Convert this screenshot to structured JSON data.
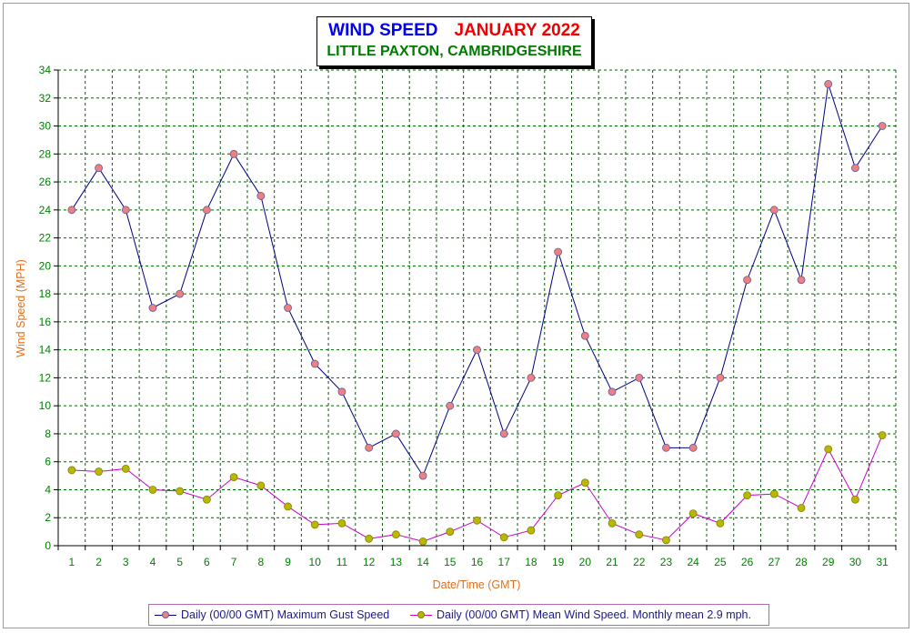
{
  "title": {
    "main": "WIND SPEED",
    "month": "JANUARY 2022",
    "location": "LITTLE PAXTON, CAMBRIDGESHIRE"
  },
  "colors": {
    "gust_line": "#000080",
    "gust_marker": "#f08080",
    "mean_line": "#cc00cc",
    "mean_marker": "#b8b800",
    "grid": "#006400",
    "tick_label": "#008000",
    "axis_title": "#e07020"
  },
  "legend": {
    "gust": "Daily (00/00 GMT) Maximum Gust Speed",
    "mean": "Daily (00/00 GMT) Mean Wind Speed. Monthly mean 2.9 mph."
  },
  "chart_data": {
    "type": "line",
    "title": "WIND SPEED JANUARY 2022",
    "subtitle": "LITTLE PAXTON, CAMBRIDGESHIRE",
    "xlabel": "Date/Time (GMT)",
    "ylabel": "Wind Speed (MPH)",
    "ylim": [
      0,
      34
    ],
    "yticks": [
      0,
      2,
      4,
      6,
      8,
      10,
      12,
      14,
      16,
      18,
      20,
      22,
      24,
      26,
      28,
      30,
      32,
      34
    ],
    "grid": true,
    "legend_position": "bottom",
    "categories": [
      "1",
      "2",
      "3",
      "4",
      "5",
      "6",
      "7",
      "8",
      "9",
      "10",
      "11",
      "12",
      "13",
      "14",
      "15",
      "16",
      "17",
      "18",
      "19",
      "20",
      "21",
      "22",
      "23",
      "24",
      "25",
      "26",
      "27",
      "28",
      "29",
      "30",
      "31"
    ],
    "series": [
      {
        "name": "Daily (00/00 GMT) Maximum Gust Speed",
        "values": [
          24,
          27,
          24,
          17,
          18,
          24,
          28,
          25,
          17,
          13,
          11,
          7,
          8,
          5,
          10,
          14,
          8,
          12,
          21,
          15,
          11,
          12,
          7,
          7,
          12,
          19,
          24,
          19,
          33,
          27,
          30
        ]
      },
      {
        "name": "Daily (00/00 GMT) Mean Wind Speed. Monthly mean 2.9 mph.",
        "values": [
          5.4,
          5.3,
          5.5,
          4.0,
          3.9,
          3.3,
          4.9,
          4.3,
          2.8,
          1.5,
          1.6,
          0.5,
          0.8,
          0.3,
          1.0,
          1.8,
          0.6,
          1.1,
          3.6,
          4.5,
          1.6,
          0.8,
          0.4,
          2.3,
          1.6,
          3.6,
          3.7,
          2.7,
          6.9,
          3.3,
          7.9
        ]
      }
    ]
  }
}
